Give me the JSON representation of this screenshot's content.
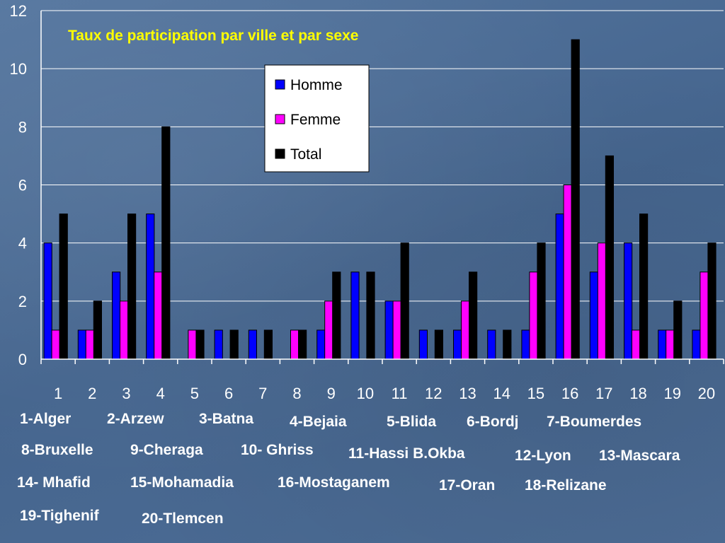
{
  "chart_data": {
    "type": "bar",
    "title": "Taux de participation par ville et par sexe",
    "categories": [
      "1",
      "2",
      "3",
      "4",
      "5",
      "6",
      "7",
      "8",
      "9",
      "10",
      "11",
      "12",
      "13",
      "14",
      "15",
      "16",
      "17",
      "18",
      "19",
      "20"
    ],
    "series": [
      {
        "name": "Homme",
        "color": "#0000ff",
        "values": [
          4,
          1,
          3,
          5,
          0,
          1,
          1,
          0,
          1,
          3,
          2,
          1,
          1,
          1,
          1,
          5,
          3,
          4,
          1,
          1
        ]
      },
      {
        "name": "Femme",
        "color": "#ff00ff",
        "values": [
          1,
          1,
          2,
          3,
          1,
          0,
          0,
          1,
          2,
          0,
          2,
          0,
          2,
          0,
          3,
          6,
          4,
          1,
          1,
          3
        ]
      },
      {
        "name": "Total",
        "color": "#000000",
        "values": [
          5,
          2,
          5,
          8,
          1,
          1,
          1,
          1,
          3,
          3,
          4,
          1,
          3,
          1,
          4,
          11,
          7,
          5,
          2,
          4
        ]
      }
    ],
    "ylim": [
      0,
      12
    ],
    "yticks": [
      "0",
      "2",
      "4",
      "6",
      "8",
      "10",
      "12"
    ],
    "grid": true,
    "legend_position": "top-center"
  },
  "cities": [
    "1-Alger",
    "2-Arzew",
    "3-Batna",
    "4-Bejaia",
    "5-Blida",
    "6-Bordj",
    "7-Boumerdes",
    "8-Bruxelle",
    "9-Cheraga",
    "10- Ghriss",
    "11-Hassi B.Okba",
    "12-Lyon",
    "13-Mascara",
    "14- Mhafid",
    "15-Mohamadia",
    "16-Mostaganem",
    "17-Oran",
    "18-Relizane",
    "19-Tighenif",
    "20-Tlemcen"
  ]
}
